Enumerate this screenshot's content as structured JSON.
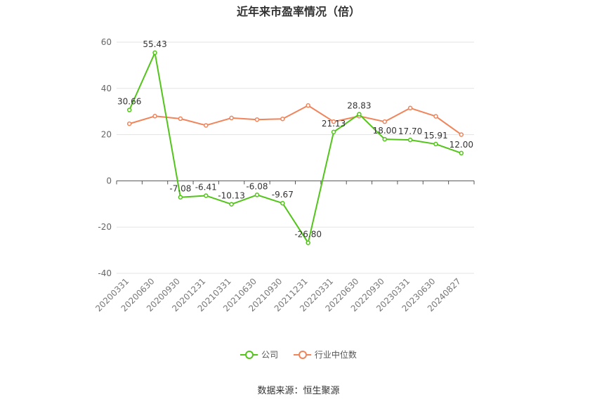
{
  "chart_data": {
    "type": "line",
    "title": "近年来市盈率情况（倍）",
    "categories": [
      "20200331",
      "20200630",
      "20200930",
      "20201231",
      "20210331",
      "20210630",
      "20210930",
      "20211231",
      "20220331",
      "20220630",
      "20220930",
      "20230331",
      "20230630",
      "20240827"
    ],
    "series": [
      {
        "name": "公司",
        "color": "#52c41a",
        "values": [
          30.66,
          55.43,
          -7.08,
          -6.41,
          -10.13,
          -6.08,
          -9.67,
          -26.8,
          21.13,
          28.83,
          18.0,
          17.7,
          15.91,
          12.0
        ],
        "labels": [
          "30.66",
          "55.43",
          "-7.08",
          "-6.41",
          "-10.13",
          "-6.08",
          "-9.67",
          "-26.80",
          "21.13",
          "28.83",
          "18.00",
          "17.70",
          "15.91",
          "12.00"
        ]
      },
      {
        "name": "行业中位数",
        "color": "#f0845a",
        "values": [
          24.7,
          28.0,
          26.9,
          24.0,
          27.2,
          26.5,
          26.8,
          32.6,
          25.6,
          28.0,
          25.6,
          31.5,
          27.9,
          20.0
        ]
      }
    ],
    "ylim": [
      -40,
      60
    ],
    "yticks": [
      60,
      40,
      20,
      0,
      -20,
      -40
    ],
    "grid": true,
    "legend_position": "bottom"
  },
  "source": "数据来源：恒生聚源"
}
